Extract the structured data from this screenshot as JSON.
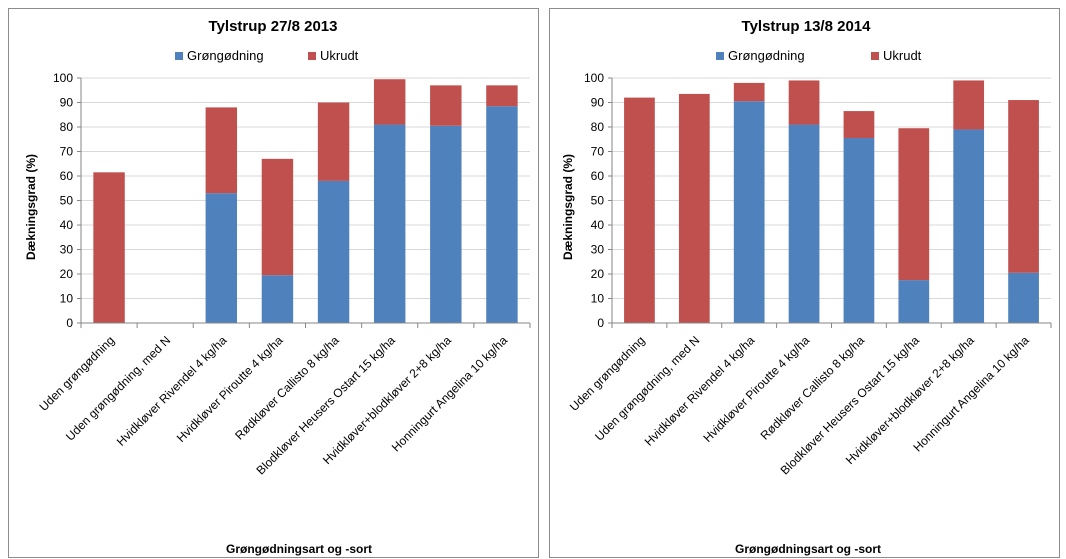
{
  "colors": {
    "gron": "#4f81bd",
    "ukrudt": "#c0504d"
  },
  "chart_data": [
    {
      "type": "bar",
      "stacked": true,
      "title": "Tylstrup 27/8 2013",
      "xlabel": "Grøngødningsart og -sort",
      "ylabel": "Dækningsgrad (%)",
      "ylim": [
        0,
        100
      ],
      "yticks": [
        "0",
        "10",
        "20",
        "30",
        "40",
        "50",
        "60",
        "70",
        "80",
        "90",
        "100"
      ],
      "legend_position": "top",
      "categories": [
        "Uden grøngødning",
        "Uden grøngødning, med N",
        "Hvidkløver Rivendel 4 kg/ha",
        "Hvidkløver Piroutte 4 kg/ha",
        "Rødkløver Callisto 8 kg/ha",
        "Blodkløver Heusers Ostart 15 kg/ha",
        "Hvidkløver+blodkløver 2+8 kg/ha",
        "Honningurt Angelina 10 kg/ha"
      ],
      "series": [
        {
          "name": "Grøngødning",
          "values": [
            0,
            0,
            53,
            19.5,
            58,
            81,
            80.5,
            88.5
          ]
        },
        {
          "name": "Ukrudt",
          "values": [
            61.5,
            0,
            35,
            47.5,
            32,
            18.5,
            16.5,
            8.5
          ]
        }
      ]
    },
    {
      "type": "bar",
      "stacked": true,
      "title": "Tylstrup 13/8 2014",
      "xlabel": "Grøngødningsart og -sort",
      "ylabel": "Dækningsgrad (%)",
      "ylim": [
        0,
        100
      ],
      "yticks": [
        "0",
        "10",
        "20",
        "30",
        "40",
        "50",
        "60",
        "70",
        "80",
        "90",
        "100"
      ],
      "legend_position": "top",
      "categories": [
        "Uden grøngødning",
        "Uden grøngødning, med N",
        "Hvidkløver Rivendel 4 kg/ha",
        "Hvidkløver Piroutte 4 kg/ha",
        "Rødkløver Callisto 8 kg/ha",
        "Blodkløver Heusers Ostart 15 kg/ha",
        "Hvidkløver+blodkløver 2+8 kg/ha",
        "Honningurt Angelina 10 kg/ha"
      ],
      "series": [
        {
          "name": "Grøngødning",
          "values": [
            0,
            0,
            90.5,
            81,
            75.5,
            17.5,
            79,
            20.5
          ]
        },
        {
          "name": "Ukrudt",
          "values": [
            92,
            93.5,
            7.5,
            18,
            11,
            62,
            20,
            70.5
          ]
        }
      ]
    }
  ]
}
